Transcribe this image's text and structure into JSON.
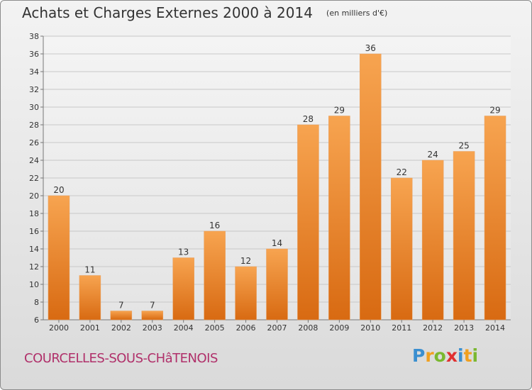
{
  "chart_data": {
    "type": "bar",
    "title": "Achats et Charges Externes 2000 à 2014",
    "subtitle": "(en milliers d'€)",
    "categories": [
      "2000",
      "2001",
      "2002",
      "2003",
      "2004",
      "2005",
      "2006",
      "2007",
      "2008",
      "2009",
      "2010",
      "2011",
      "2012",
      "2013",
      "2014"
    ],
    "values": [
      20,
      11,
      7,
      7,
      13,
      16,
      12,
      14,
      28,
      29,
      36,
      22,
      24,
      25,
      29
    ],
    "data_labels": [
      "20",
      "11",
      "7",
      "7",
      "13",
      "16",
      "12",
      "14",
      "28",
      "29",
      "36",
      "22",
      "24",
      "25",
      "29"
    ],
    "ylim": [
      6,
      38
    ],
    "yticks": [
      6,
      8,
      10,
      12,
      14,
      16,
      18,
      20,
      22,
      24,
      26,
      28,
      30,
      32,
      34,
      36,
      38
    ],
    "grid": true,
    "bar_color": "#f08c32"
  },
  "footer": {
    "commune": "COURCELLES-SOUS-CHâTENOIS",
    "logo_letters": [
      "P",
      "r",
      "o",
      "x",
      "i",
      "t",
      "i"
    ],
    "logo_colors": [
      "#3a8fd0",
      "#f0a020",
      "#7ab830",
      "#e03030",
      "#3a8fd0",
      "#f0a020",
      "#7ab830"
    ]
  }
}
